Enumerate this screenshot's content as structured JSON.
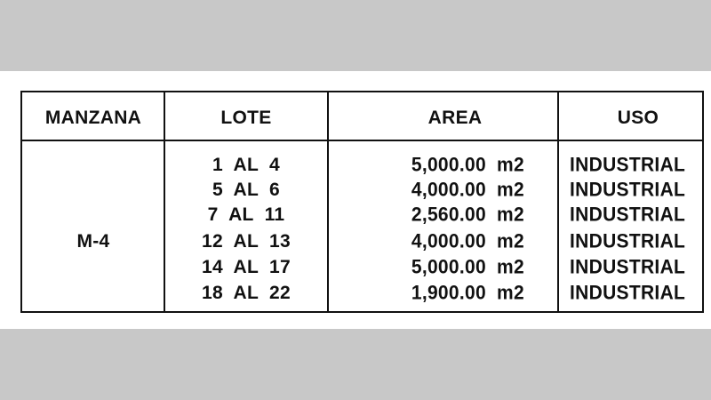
{
  "table": {
    "headers": [
      "MANZANA",
      "LOTE",
      "AREA",
      "USO"
    ],
    "manzana": "M-4",
    "rows": [
      {
        "lote": "1  AL  4",
        "area": "5,000.00",
        "unit": "m2",
        "uso": "INDUSTRIAL"
      },
      {
        "lote": "5  AL  6",
        "area": "4,000.00",
        "unit": "m2",
        "uso": "INDUSTRIAL"
      },
      {
        "lote": "7  AL  11",
        "area": "2,560.00",
        "unit": "m2",
        "uso": "INDUSTRIAL"
      },
      {
        "lote": "12  AL  13",
        "area": "4,000.00",
        "unit": "m2",
        "uso": "INDUSTRIAL"
      },
      {
        "lote": "14  AL  17",
        "area": "5,000.00",
        "unit": "m2",
        "uso": "INDUSTRIAL"
      },
      {
        "lote": "18  AL  22",
        "area": "1,900.00",
        "unit": "m2",
        "uso": "INDUSTRIAL"
      }
    ]
  }
}
